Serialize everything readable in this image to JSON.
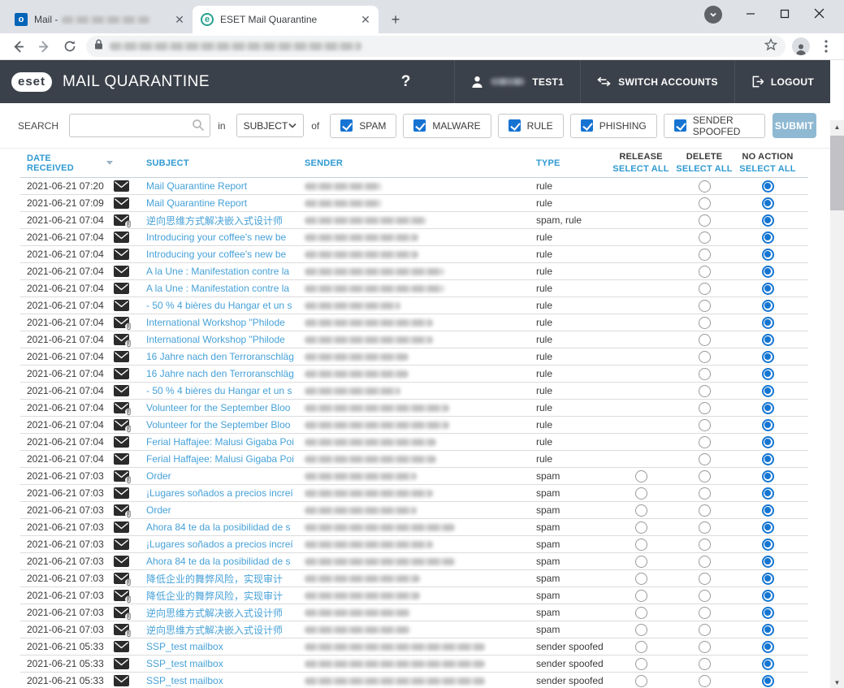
{
  "browser": {
    "tabs": [
      {
        "title": "Mail -",
        "favicon": "outlook",
        "favicon_glyph": "o",
        "title_redacted": true
      },
      {
        "title": "ESET Mail Quarantine",
        "favicon": "eset",
        "favicon_glyph": "e",
        "active": true
      }
    ],
    "new_tab_label": "+",
    "url_redacted": true
  },
  "app_header": {
    "logo_text": "eset",
    "title": "MAIL QUARANTINE",
    "help_label": "?",
    "user_label": "TEST1",
    "user_prefix_redacted": true,
    "switch_accounts_label": "SWITCH ACCOUNTS",
    "logout_label": "LOGOUT"
  },
  "search": {
    "label": "SEARCH",
    "input_value": "",
    "in_label": "in",
    "field_selected": "SUBJECT",
    "of_label": "of",
    "filters": [
      {
        "label": "SPAM",
        "checked": true
      },
      {
        "label": "MALWARE",
        "checked": true
      },
      {
        "label": "RULE",
        "checked": true
      },
      {
        "label": "PHISHING",
        "checked": true
      },
      {
        "label": "SENDER SPOOFED",
        "checked": true
      }
    ],
    "submit_label": "SUBMIT"
  },
  "table": {
    "headers": {
      "date": "DATE RECEIVED",
      "subject": "SUBJECT",
      "sender": "SENDER",
      "type": "TYPE",
      "actions": [
        {
          "line1": "RELEASE",
          "line2": "SELECT ALL"
        },
        {
          "line1": "DELETE",
          "line2": "SELECT ALL"
        },
        {
          "line1": "NO ACTION",
          "line2": "SELECT ALL"
        }
      ],
      "sort_column": "date",
      "sort_direction": "desc"
    },
    "rows": [
      {
        "date": "2021-06-21 07:20",
        "subject": "Mail Quarantine Report",
        "attachment": false,
        "type": "rule",
        "can_release": false,
        "selected": "no-action",
        "sender_redacted": true,
        "sender_width": 95
      },
      {
        "date": "2021-06-21 07:09",
        "subject": "Mail Quarantine Report",
        "attachment": false,
        "type": "rule",
        "can_release": false,
        "selected": "no-action",
        "sender_redacted": true,
        "sender_width": 95
      },
      {
        "date": "2021-06-21 07:04",
        "subject": "逆向思维方式解决嵌入式设计师",
        "attachment": true,
        "type": "spam, rule",
        "can_release": false,
        "selected": "no-action",
        "sender_redacted": true,
        "sender_width": 150
      },
      {
        "date": "2021-06-21 07:04",
        "subject": "Introducing your coffee's new be",
        "attachment": false,
        "type": "rule",
        "can_release": false,
        "selected": "no-action",
        "sender_redacted": true,
        "sender_width": 140
      },
      {
        "date": "2021-06-21 07:04",
        "subject": "Introducing your coffee's new be",
        "attachment": false,
        "type": "rule",
        "can_release": false,
        "selected": "no-action",
        "sender_redacted": true,
        "sender_width": 140
      },
      {
        "date": "2021-06-21 07:04",
        "subject": "A la Une : Manifestation contre la",
        "attachment": false,
        "type": "rule",
        "can_release": false,
        "selected": "no-action",
        "sender_redacted": true,
        "sender_width": 172
      },
      {
        "date": "2021-06-21 07:04",
        "subject": "A la Une : Manifestation contre la",
        "attachment": false,
        "type": "rule",
        "can_release": false,
        "selected": "no-action",
        "sender_redacted": true,
        "sender_width": 172
      },
      {
        "date": "2021-06-21 07:04",
        "subject": "- 50 % 4 bières du Hangar et un s",
        "attachment": false,
        "type": "rule",
        "can_release": false,
        "selected": "no-action",
        "sender_redacted": true,
        "sender_width": 118
      },
      {
        "date": "2021-06-21 07:04",
        "subject": "International Workshop \"Philode",
        "attachment": true,
        "type": "rule",
        "can_release": false,
        "selected": "no-action",
        "sender_redacted": true,
        "sender_width": 158
      },
      {
        "date": "2021-06-21 07:04",
        "subject": "International Workshop \"Philode",
        "attachment": true,
        "type": "rule",
        "can_release": false,
        "selected": "no-action",
        "sender_redacted": true,
        "sender_width": 158
      },
      {
        "date": "2021-06-21 07:04",
        "subject": "16 Jahre nach den Terroranschläg",
        "attachment": false,
        "type": "rule",
        "can_release": false,
        "selected": "no-action",
        "sender_redacted": true,
        "sender_width": 128
      },
      {
        "date": "2021-06-21 07:04",
        "subject": "16 Jahre nach den Terroranschläg",
        "attachment": false,
        "type": "rule",
        "can_release": false,
        "selected": "no-action",
        "sender_redacted": true,
        "sender_width": 128
      },
      {
        "date": "2021-06-21 07:04",
        "subject": "- 50 % 4 bières du Hangar et un s",
        "attachment": false,
        "type": "rule",
        "can_release": false,
        "selected": "no-action",
        "sender_redacted": true,
        "sender_width": 118
      },
      {
        "date": "2021-06-21 07:04",
        "subject": "Volunteer for the September Bloo",
        "attachment": true,
        "type": "rule",
        "can_release": false,
        "selected": "no-action",
        "sender_redacted": true,
        "sender_width": 178
      },
      {
        "date": "2021-06-21 07:04",
        "subject": "Volunteer for the September Bloo",
        "attachment": true,
        "type": "rule",
        "can_release": false,
        "selected": "no-action",
        "sender_redacted": true,
        "sender_width": 178
      },
      {
        "date": "2021-06-21 07:04",
        "subject": "Ferial Haffajee: Malusi Gigaba Poi",
        "attachment": false,
        "type": "rule",
        "can_release": false,
        "selected": "no-action",
        "sender_redacted": true,
        "sender_width": 162
      },
      {
        "date": "2021-06-21 07:04",
        "subject": "Ferial Haffajee: Malusi Gigaba Poi",
        "attachment": false,
        "type": "rule",
        "can_release": false,
        "selected": "no-action",
        "sender_redacted": true,
        "sender_width": 162
      },
      {
        "date": "2021-06-21 07:03",
        "subject": "Order",
        "attachment": true,
        "type": "spam",
        "can_release": true,
        "selected": "no-action",
        "sender_redacted": true,
        "sender_width": 138
      },
      {
        "date": "2021-06-21 07:03",
        "subject": "¡Lugares soñados a precios increí",
        "attachment": false,
        "type": "spam",
        "can_release": true,
        "selected": "no-action",
        "sender_redacted": true,
        "sender_width": 158
      },
      {
        "date": "2021-06-21 07:03",
        "subject": "Order",
        "attachment": true,
        "type": "spam",
        "can_release": true,
        "selected": "no-action",
        "sender_redacted": true,
        "sender_width": 138
      },
      {
        "date": "2021-06-21 07:03",
        "subject": "Ahora 84 te da la posibilidad de s",
        "attachment": false,
        "type": "spam",
        "can_release": true,
        "selected": "no-action",
        "sender_redacted": true,
        "sender_width": 185
      },
      {
        "date": "2021-06-21 07:03",
        "subject": "¡Lugares soñados a precios increí",
        "attachment": false,
        "type": "spam",
        "can_release": true,
        "selected": "no-action",
        "sender_redacted": true,
        "sender_width": 158
      },
      {
        "date": "2021-06-21 07:03",
        "subject": "Ahora 84 te da la posibilidad de s",
        "attachment": false,
        "type": "spam",
        "can_release": true,
        "selected": "no-action",
        "sender_redacted": true,
        "sender_width": 185
      },
      {
        "date": "2021-06-21 07:03",
        "subject": "降低企业的舞弊风险，实现审计",
        "attachment": true,
        "type": "spam",
        "can_release": true,
        "selected": "no-action",
        "sender_redacted": true,
        "sender_width": 142
      },
      {
        "date": "2021-06-21 07:03",
        "subject": "降低企业的舞弊风险，实现审计",
        "attachment": true,
        "type": "spam",
        "can_release": true,
        "selected": "no-action",
        "sender_redacted": true,
        "sender_width": 142
      },
      {
        "date": "2021-06-21 07:03",
        "subject": "逆向思维方式解决嵌入式设计师",
        "attachment": true,
        "type": "spam",
        "can_release": true,
        "selected": "no-action",
        "sender_redacted": true,
        "sender_width": 130
      },
      {
        "date": "2021-06-21 07:03",
        "subject": "逆向思维方式解决嵌入式设计师",
        "attachment": true,
        "type": "spam",
        "can_release": true,
        "selected": "no-action",
        "sender_redacted": true,
        "sender_width": 130
      },
      {
        "date": "2021-06-21 05:33",
        "subject": "SSP_test mailbox",
        "attachment": false,
        "type": "sender spoofed",
        "can_release": true,
        "selected": "no-action",
        "sender_redacted": true,
        "sender_width": 222
      },
      {
        "date": "2021-06-21 05:33",
        "subject": "SSP_test mailbox",
        "attachment": false,
        "type": "sender spoofed",
        "can_release": true,
        "selected": "no-action",
        "sender_redacted": true,
        "sender_width": 222
      },
      {
        "date": "2021-06-21 05:33",
        "subject": "SSP_test mailbox",
        "attachment": false,
        "type": "sender spoofed",
        "can_release": true,
        "selected": "no-action",
        "sender_redacted": true,
        "sender_width": 222
      }
    ]
  },
  "colors": {
    "app_header_bg": "#3b414a",
    "accent_blue": "#2f9ad2",
    "link_blue": "#46a1d8",
    "radio_blue": "#1576d2",
    "checkbox_blue": "#1673d2",
    "submit_bg": "#8fb9d2",
    "tabstrip_bg": "#dee1e6"
  }
}
